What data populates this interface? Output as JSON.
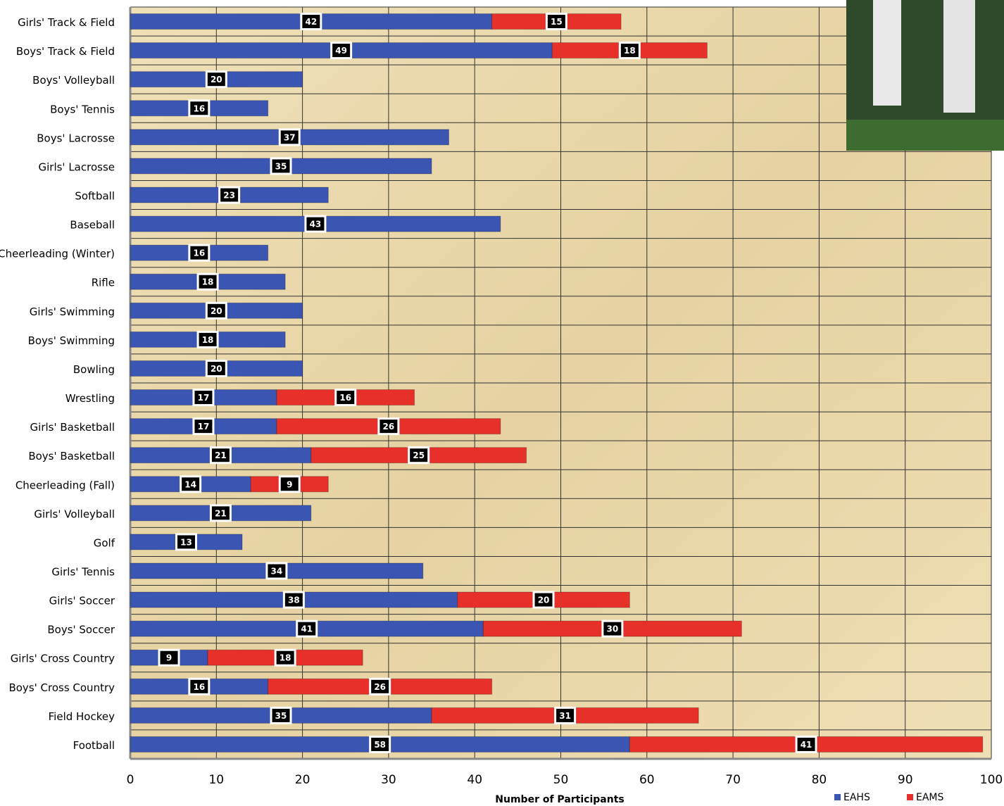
{
  "chart_data": {
    "type": "stacked-barh",
    "categories": [
      "Girls' Track & Field",
      "Boys' Track & Field",
      "Boys' Volleyball",
      "Boys' Tennis",
      "Boys' Lacrosse",
      "Girls' Lacrosse",
      "Softball",
      "Baseball",
      "Cheerleading (Winter)",
      "Rifle",
      "Girls' Swimming",
      "Boys' Swimming",
      "Bowling",
      "Wrestling",
      "Girls' Basketball",
      "Boys' Basketball",
      "Cheerleading (Fall)",
      "Girls' Volleyball",
      "Golf",
      "Girls' Tennis",
      "Girls' Soccer",
      "Boys' Soccer",
      "Girls' Cross Country",
      "Boys' Cross Country",
      "Field Hockey",
      "Football"
    ],
    "series": [
      {
        "name": "EAHS",
        "color": "#3b55b3",
        "values": [
          42,
          49,
          20,
          16,
          37,
          35,
          23,
          43,
          16,
          18,
          20,
          18,
          20,
          17,
          17,
          21,
          14,
          21,
          13,
          34,
          38,
          41,
          9,
          16,
          35,
          58
        ]
      },
      {
        "name": "EAMS",
        "color": "#e8302a",
        "values": [
          15,
          18,
          null,
          null,
          null,
          null,
          null,
          null,
          null,
          null,
          null,
          null,
          null,
          16,
          26,
          25,
          9,
          null,
          null,
          null,
          20,
          30,
          18,
          26,
          31,
          41
        ]
      }
    ],
    "xlabel": "Number of Participants",
    "xlim": [
      0,
      100
    ],
    "xticks": [
      0,
      10,
      20,
      30,
      40,
      50,
      60,
      70,
      80,
      90,
      100
    ],
    "grid": true,
    "legend": "bottom-right"
  }
}
